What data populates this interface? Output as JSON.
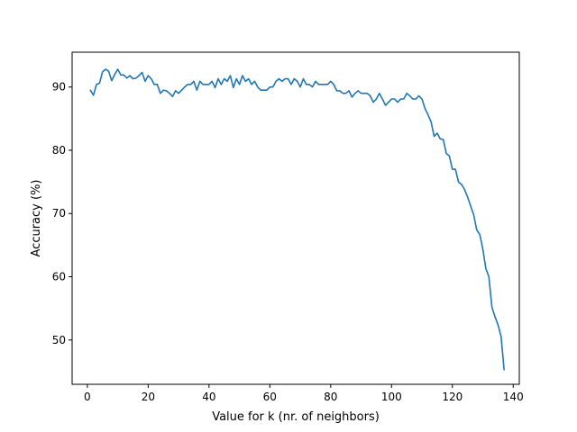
{
  "chart_data": {
    "type": "line",
    "title": "",
    "xlabel": "Value for k (nr. of neighbors)",
    "ylabel": "Accuracy (%)",
    "xlim": [
      -5,
      142
    ],
    "ylim": [
      43,
      95.5
    ],
    "xticks": [
      0,
      20,
      40,
      60,
      80,
      100,
      120,
      140
    ],
    "yticks": [
      50,
      60,
      70,
      80,
      90
    ],
    "grid": false,
    "legend": "none",
    "series": [
      {
        "color": "#1f77b4",
        "x": [
          1,
          2,
          3,
          4,
          5,
          6,
          7,
          8,
          9,
          10,
          11,
          12,
          13,
          14,
          15,
          16,
          17,
          18,
          19,
          20,
          21,
          22,
          23,
          24,
          25,
          26,
          27,
          28,
          29,
          30,
          31,
          32,
          33,
          34,
          35,
          36,
          37,
          38,
          39,
          40,
          41,
          42,
          43,
          44,
          45,
          46,
          47,
          48,
          49,
          50,
          51,
          52,
          53,
          54,
          55,
          56,
          57,
          58,
          59,
          60,
          61,
          62,
          63,
          64,
          65,
          66,
          67,
          68,
          69,
          70,
          71,
          72,
          73,
          74,
          75,
          76,
          77,
          78,
          79,
          80,
          81,
          82,
          83,
          84,
          85,
          86,
          87,
          88,
          89,
          90,
          91,
          92,
          93,
          94,
          95,
          96,
          97,
          98,
          99,
          100,
          101,
          102,
          103,
          104,
          105,
          106,
          107,
          108,
          109,
          110,
          111,
          112,
          113,
          114,
          115,
          116,
          117,
          118,
          119,
          120,
          121,
          122,
          123,
          124,
          125,
          126,
          127,
          128,
          129,
          130,
          131,
          132,
          133,
          134,
          135,
          136,
          137
        ],
        "y": [
          89.5,
          88.7,
          90.4,
          90.6,
          92.4,
          92.8,
          92.5,
          91.0,
          92.0,
          92.8,
          91.9,
          91.9,
          91.4,
          91.8,
          91.3,
          91.4,
          91.8,
          92.3,
          90.9,
          91.8,
          91.3,
          90.4,
          90.4,
          89.0,
          89.5,
          89.4,
          89.0,
          88.5,
          89.4,
          89.0,
          89.5,
          90.0,
          90.4,
          90.4,
          90.9,
          89.5,
          90.9,
          90.4,
          90.4,
          90.4,
          90.9,
          89.9,
          91.3,
          90.4,
          91.3,
          90.9,
          91.8,
          89.9,
          91.3,
          90.4,
          91.8,
          90.9,
          91.3,
          90.4,
          90.9,
          90.0,
          89.5,
          89.5,
          89.5,
          90.0,
          90.0,
          90.9,
          91.3,
          90.9,
          91.3,
          91.3,
          90.4,
          91.3,
          90.9,
          90.0,
          91.3,
          90.4,
          90.4,
          90.0,
          90.9,
          90.4,
          90.4,
          90.4,
          90.4,
          90.9,
          90.4,
          89.4,
          89.4,
          89.0,
          89.0,
          89.4,
          88.4,
          89.0,
          89.4,
          89.0,
          89.0,
          89.0,
          88.6,
          87.6,
          88.1,
          89.0,
          88.1,
          87.1,
          87.6,
          88.1,
          88.1,
          87.6,
          88.1,
          88.1,
          89.0,
          88.6,
          88.1,
          88.1,
          88.6,
          88.1,
          86.6,
          85.6,
          84.5,
          82.2,
          82.7,
          81.8,
          81.7,
          79.5,
          79.1,
          77.0,
          77.0,
          75.0,
          74.6,
          73.8,
          72.6,
          71.2,
          69.8,
          67.4,
          66.7,
          64.4,
          61.3,
          60.0,
          55.2,
          53.7,
          52.4,
          50.6,
          45.3
        ]
      }
    ]
  }
}
